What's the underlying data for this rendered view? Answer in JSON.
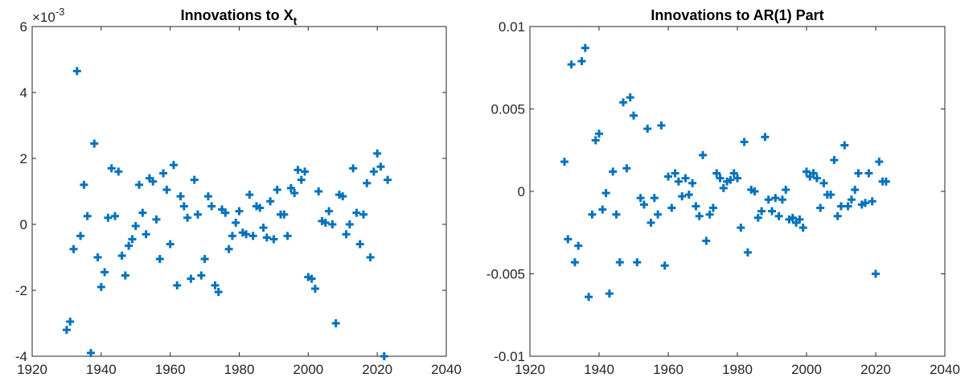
{
  "chart_data": [
    {
      "type": "scatter",
      "title": "Innovations to X",
      "title_subscript": "t",
      "multiplier_label": "×10",
      "multiplier_exponent": "-3",
      "marker": "+",
      "color": "#0072BD",
      "xlim": [
        1920,
        2040
      ],
      "ylim": [
        -4,
        6
      ],
      "x_ticks": [
        1920,
        1940,
        1960,
        1980,
        2000,
        2020,
        2040
      ],
      "y_ticks": [
        -4,
        -2,
        0,
        2,
        4,
        6
      ],
      "x_tick_labels": [
        "1920",
        "1940",
        "1960",
        "1980",
        "2000",
        "2020",
        "2040"
      ],
      "y_tick_labels": [
        "-4",
        "-2",
        "0",
        "2",
        "4",
        "6"
      ],
      "grid": false,
      "series": [
        {
          "x": [
            1930,
            1931,
            1932,
            1933,
            1934,
            1935,
            1936,
            1937,
            1938,
            1939,
            1940,
            1941,
            1942,
            1943,
            1944,
            1945,
            1946,
            1947,
            1948,
            1949,
            1950,
            1951,
            1952,
            1953,
            1954,
            1955,
            1956,
            1957,
            1958,
            1959,
            1960,
            1961,
            1962,
            1963,
            1964,
            1965,
            1966,
            1967,
            1968,
            1969,
            1970,
            1971,
            1972,
            1973,
            1974,
            1975,
            1976,
            1977,
            1978,
            1979,
            1980,
            1981,
            1982,
            1983,
            1984,
            1985,
            1986,
            1987,
            1988,
            1989,
            1990,
            1991,
            1992,
            1993,
            1994,
            1995,
            1996,
            1997,
            1998,
            1999,
            2000,
            2001,
            2002,
            2003,
            2004,
            2005,
            2006,
            2007,
            2008,
            2009,
            2010,
            2011,
            2012,
            2013,
            2014,
            2015,
            2016,
            2017,
            2018,
            2019,
            2020,
            2021,
            2022,
            2023
          ],
          "y": [
            -3.2,
            -2.95,
            -0.75,
            4.65,
            -0.35,
            1.2,
            0.25,
            -3.9,
            2.45,
            -1.0,
            -1.9,
            -1.45,
            0.2,
            1.7,
            0.25,
            1.6,
            -0.95,
            -1.55,
            -0.65,
            -0.45,
            -0.05,
            1.2,
            0.35,
            -0.3,
            1.4,
            1.3,
            0.15,
            -1.05,
            1.55,
            1.05,
            -0.6,
            1.8,
            -1.85,
            0.85,
            0.55,
            0.2,
            -1.65,
            1.35,
            0.3,
            -1.55,
            -1.05,
            0.85,
            0.55,
            -1.85,
            -2.05,
            0.45,
            0.35,
            -0.75,
            -0.35,
            0.05,
            0.4,
            -0.25,
            -0.3,
            0.9,
            -0.35,
            0.55,
            0.5,
            -0.1,
            -0.4,
            0.7,
            -0.45,
            1.05,
            0.3,
            0.3,
            -0.35,
            1.1,
            0.95,
            1.65,
            1.35,
            1.6,
            -1.6,
            -1.65,
            -1.95,
            1.0,
            0.1,
            0.05,
            0.4,
            0.0,
            -3.0,
            0.9,
            0.85,
            -0.3,
            0.0,
            1.7,
            0.35,
            -0.6,
            0.3,
            1.25,
            -1.0,
            1.6,
            2.15,
            1.75,
            -4.0,
            1.35
          ]
        }
      ]
    },
    {
      "type": "scatter",
      "title": "Innovations to AR(1) Part",
      "marker": "+",
      "color": "#0072BD",
      "xlim": [
        1920,
        2040
      ],
      "ylim": [
        -0.01,
        0.01
      ],
      "x_ticks": [
        1920,
        1940,
        1960,
        1980,
        2000,
        2020,
        2040
      ],
      "y_ticks": [
        -0.01,
        -0.005,
        0,
        0.005,
        0.01
      ],
      "x_tick_labels": [
        "1920",
        "1940",
        "1960",
        "1980",
        "2000",
        "2020",
        "2040"
      ],
      "y_tick_labels": [
        "-0.01",
        "-0.005",
        "0",
        "0.005",
        "0.01"
      ],
      "grid": false,
      "series": [
        {
          "x": [
            1930,
            1931,
            1932,
            1933,
            1934,
            1935,
            1936,
            1937,
            1938,
            1939,
            1940,
            1941,
            1942,
            1943,
            1944,
            1945,
            1946,
            1947,
            1948,
            1949,
            1950,
            1951,
            1952,
            1953,
            1954,
            1955,
            1956,
            1957,
            1958,
            1959,
            1960,
            1961,
            1962,
            1963,
            1964,
            1965,
            1966,
            1967,
            1968,
            1969,
            1970,
            1971,
            1972,
            1973,
            1974,
            1975,
            1976,
            1977,
            1978,
            1979,
            1980,
            1981,
            1982,
            1983,
            1984,
            1985,
            1986,
            1987,
            1988,
            1989,
            1990,
            1991,
            1992,
            1993,
            1994,
            1995,
            1996,
            1997,
            1998,
            1999,
            2000,
            2001,
            2002,
            2003,
            2004,
            2005,
            2006,
            2007,
            2008,
            2009,
            2010,
            2011,
            2012,
            2013,
            2014,
            2015,
            2016,
            2017,
            2018,
            2019,
            2020,
            2021,
            2022,
            2023
          ],
          "y": [
            0.0018,
            -0.0029,
            0.0077,
            -0.0043,
            -0.0033,
            0.0079,
            0.0087,
            -0.0064,
            -0.0014,
            0.0031,
            0.0035,
            -0.0011,
            -0.0001,
            -0.0062,
            0.0012,
            -0.0014,
            -0.0043,
            0.0054,
            0.0014,
            0.0057,
            0.0046,
            -0.0043,
            -0.0004,
            -0.0008,
            0.0038,
            -0.0019,
            -0.0004,
            -0.0014,
            0.004,
            -0.0045,
            0.0009,
            -0.001,
            0.0011,
            0.0006,
            -0.0003,
            0.0008,
            -0.0002,
            0.0005,
            -0.0009,
            -0.0015,
            0.0022,
            -0.003,
            -0.0014,
            -0.001,
            0.0011,
            0.0008,
            0.0002,
            0.0006,
            0.0007,
            0.0011,
            0.0008,
            -0.0022,
            0.003,
            -0.0037,
            0.0001,
            0.0,
            -0.0016,
            -0.0012,
            0.0033,
            -0.0005,
            -0.0012,
            -0.0004,
            -0.0015,
            -0.0005,
            0.0001,
            -0.0017,
            -0.0016,
            -0.0019,
            -0.0017,
            -0.0022,
            0.0012,
            0.0009,
            0.0011,
            0.0008,
            -0.001,
            0.0005,
            -0.0002,
            -0.0002,
            0.0019,
            -0.0015,
            -0.0009,
            0.0028,
            -0.0009,
            -0.0005,
            0.0001,
            0.0011,
            -0.0008,
            -0.0007,
            0.0011,
            -0.0006,
            -0.005,
            0.0018,
            0.0006,
            0.0006
          ]
        }
      ]
    }
  ]
}
